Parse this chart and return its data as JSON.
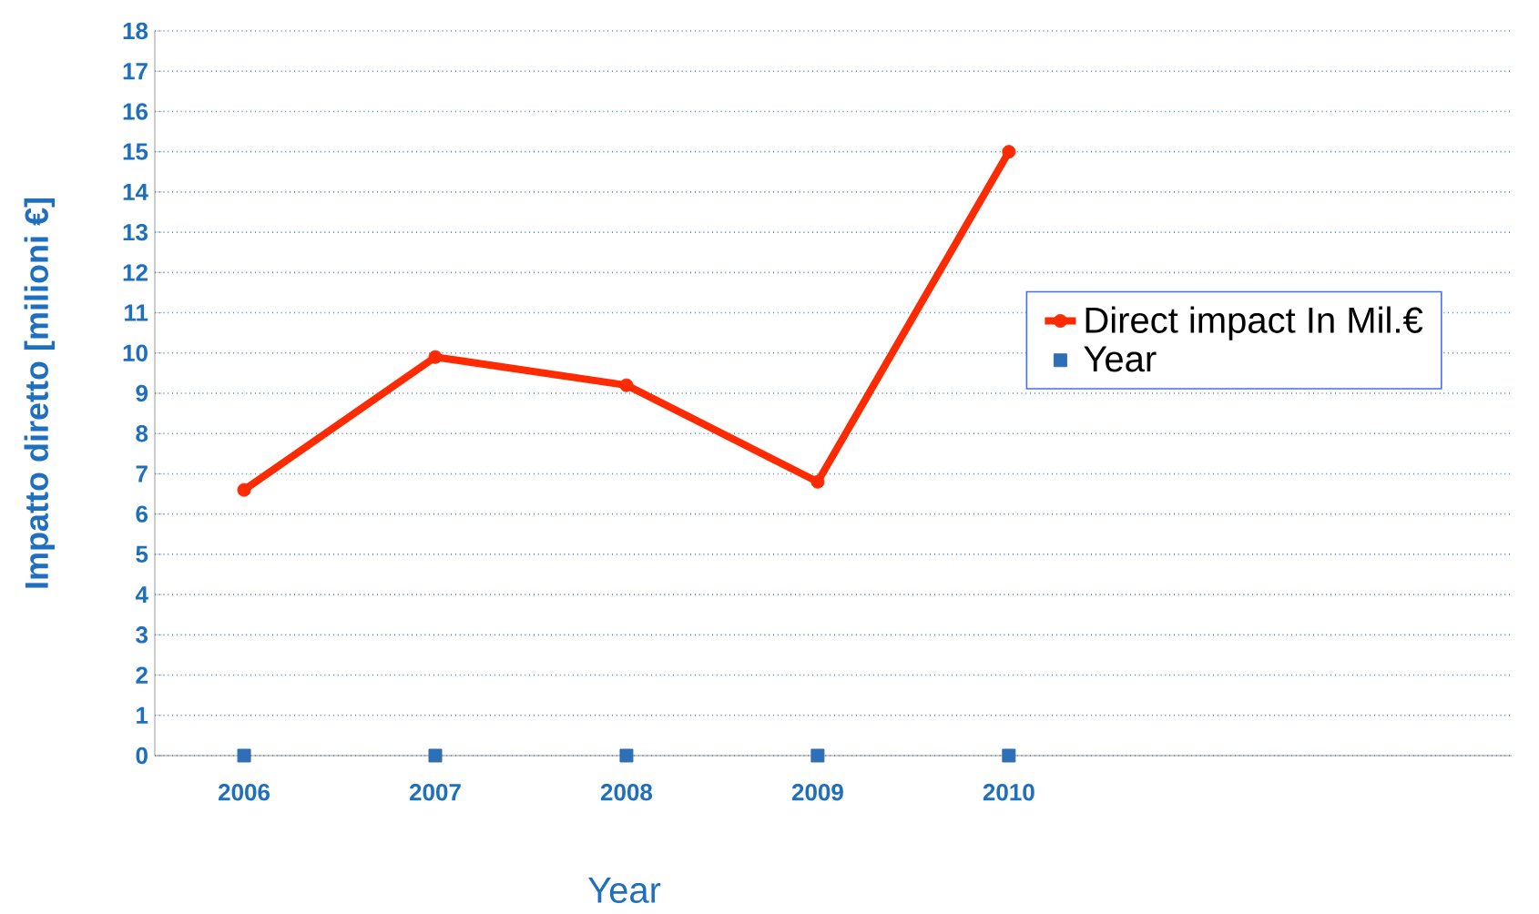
{
  "chart_data": {
    "type": "line",
    "ylabel": "Impatto diretto [milioni €]",
    "xlabel": "Year",
    "categories": [
      "2006",
      "2007",
      "2008",
      "2009",
      "2010"
    ],
    "series": [
      {
        "name": "Direct impact  In Mil.€",
        "color": "#ff2a00",
        "values": [
          6.6,
          9.9,
          9.2,
          6.8,
          15.0
        ],
        "marker": "circle"
      },
      {
        "name": "Year",
        "type": "scatter",
        "color": "#2f6fb5",
        "values": [
          0,
          0,
          0,
          0,
          0
        ],
        "marker": "square"
      }
    ],
    "ylim": [
      0,
      18
    ],
    "yticks": [
      0,
      1,
      2,
      3,
      4,
      5,
      6,
      7,
      8,
      9,
      10,
      11,
      12,
      13,
      14,
      15,
      16,
      17,
      18
    ],
    "grid": "y",
    "legend": "right",
    "line_style": "solid"
  }
}
